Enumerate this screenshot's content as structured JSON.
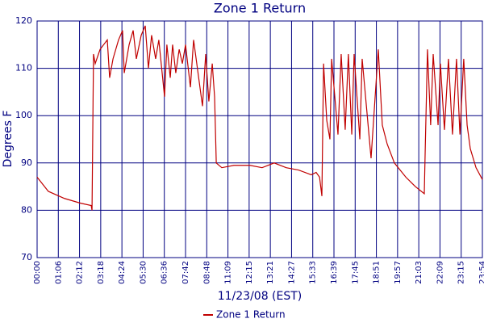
{
  "chart_data": {
    "type": "line",
    "title": "Zone 1 Return",
    "x_label": "11/23/08 (EST)",
    "y_label": "Degrees F",
    "xlim": [
      0,
      21
    ],
    "xticks": [
      {
        "value": 0,
        "label": "00:00"
      },
      {
        "value": 1,
        "label": "01:06"
      },
      {
        "value": 2,
        "label": "02:12"
      },
      {
        "value": 3,
        "label": "03:18"
      },
      {
        "value": 4,
        "label": "04:24"
      },
      {
        "value": 5,
        "label": "05:30"
      },
      {
        "value": 6,
        "label": "06:36"
      },
      {
        "value": 7,
        "label": "07:42"
      },
      {
        "value": 8,
        "label": "08:48"
      },
      {
        "value": 9,
        "label": "11:09"
      },
      {
        "value": 10,
        "label": "12:15"
      },
      {
        "value": 11,
        "label": "13:21"
      },
      {
        "value": 12,
        "label": "14:27"
      },
      {
        "value": 13,
        "label": "15:33"
      },
      {
        "value": 14,
        "label": "16:39"
      },
      {
        "value": 15,
        "label": "17:45"
      },
      {
        "value": 16,
        "label": "18:51"
      },
      {
        "value": 17,
        "label": "19:57"
      },
      {
        "value": 18,
        "label": "21:03"
      },
      {
        "value": 19,
        "label": "22:09"
      },
      {
        "value": 20,
        "label": "23:15"
      },
      {
        "value": 21,
        "label": "23:54"
      }
    ],
    "ylim": [
      70,
      120
    ],
    "yticks": [
      70,
      80,
      90,
      100,
      110,
      120
    ],
    "grid": true,
    "legend": "bottom",
    "x": [
      0,
      0.53,
      1.29,
      2.05,
      2.55,
      2.59,
      2.66,
      2.74,
      2.97,
      3.31,
      3.42,
      3.58,
      3.84,
      4.03,
      4.11,
      4.34,
      4.53,
      4.68,
      4.91,
      5.1,
      5.25,
      5.4,
      5.59,
      5.74,
      6.01,
      6.12,
      6.28,
      6.39,
      6.54,
      6.7,
      6.85,
      7.0,
      7.23,
      7.38,
      7.8,
      7.95,
      8.1,
      8.26,
      8.37,
      8.45,
      8.71,
      9.28,
      10.04,
      10.61,
      11.18,
      11.75,
      12.33,
      12.93,
      13.16,
      13.32,
      13.43,
      13.51,
      13.66,
      13.81,
      13.89,
      14.19,
      14.34,
      14.53,
      14.68,
      14.84,
      14.95,
      15.22,
      15.33,
      15.75,
      16.09,
      16.28,
      16.51,
      16.85,
      17.39,
      17.84,
      18.26,
      18.3,
      18.41,
      18.56,
      18.68,
      18.91,
      19.02,
      19.21,
      19.4,
      19.59,
      19.78,
      19.94,
      20.12,
      20.28,
      20.43,
      20.7,
      21.0
    ],
    "series": [
      {
        "name": "Zone 1 Return",
        "color": "#c00000",
        "values": [
          87,
          84,
          82.5,
          81.5,
          81,
          80,
          113,
          111,
          114,
          116,
          108,
          112,
          116,
          118,
          109,
          115,
          118,
          112,
          117,
          119,
          110,
          117,
          112,
          116,
          104,
          115,
          108,
          115,
          109,
          114,
          111,
          115,
          106,
          116,
          102,
          113,
          103,
          111,
          104,
          90,
          89,
          89.5,
          89.5,
          89,
          90,
          89,
          88.5,
          87.5,
          88,
          87,
          83,
          111,
          99,
          95,
          112,
          96,
          113,
          97,
          113,
          96,
          113,
          95,
          112,
          91,
          114,
          98,
          94,
          90,
          87,
          85,
          83.5,
          92,
          114,
          98,
          113,
          98,
          111,
          97,
          112,
          96,
          112,
          96,
          112,
          98,
          93,
          89,
          86.5
        ]
      }
    ]
  }
}
